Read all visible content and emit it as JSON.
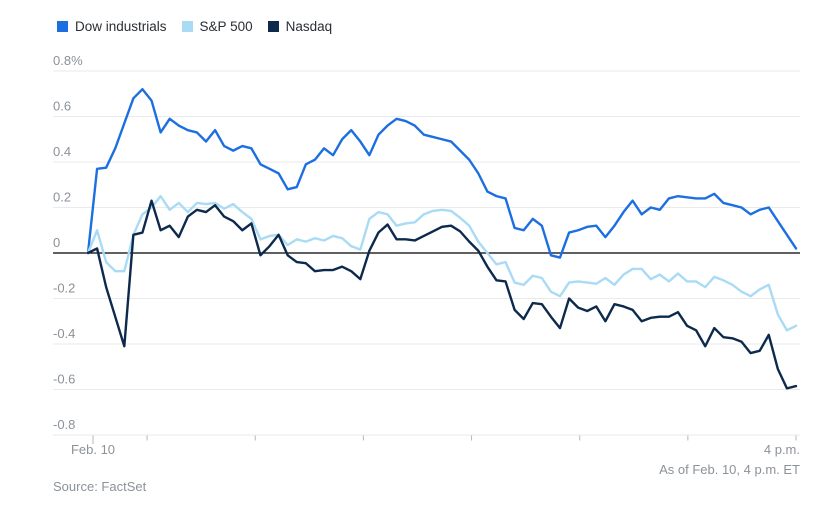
{
  "chart_data": {
    "type": "line",
    "title": "",
    "legend_position": "top-left",
    "grid": true,
    "x_axis": {
      "start_label": "Feb. 10",
      "end_label": "4 p.m."
    },
    "y_axis": {
      "unit": "%",
      "min": -0.8,
      "max": 0.8,
      "tick_labels": [
        "0.8%",
        "0.6",
        "0.4",
        "0.2",
        "0",
        "-0.2",
        "-0.4",
        "-0.6",
        "-0.8"
      ]
    },
    "series": [
      {
        "name": "Dow industrials",
        "color": "#1c6fe0",
        "values": [
          0.0,
          0.37,
          0.375,
          0.46,
          0.57,
          0.68,
          0.72,
          0.67,
          0.53,
          0.59,
          0.56,
          0.54,
          0.53,
          0.49,
          0.54,
          0.47,
          0.45,
          0.47,
          0.46,
          0.39,
          0.37,
          0.35,
          0.28,
          0.29,
          0.39,
          0.41,
          0.46,
          0.43,
          0.5,
          0.54,
          0.49,
          0.43,
          0.52,
          0.56,
          0.59,
          0.58,
          0.56,
          0.52,
          0.51,
          0.5,
          0.49,
          0.45,
          0.41,
          0.35,
          0.27,
          0.25,
          0.24,
          0.11,
          0.1,
          0.15,
          0.12,
          -0.01,
          -0.02,
          0.09,
          0.1,
          0.115,
          0.12,
          0.07,
          0.12,
          0.18,
          0.23,
          0.17,
          0.2,
          0.19,
          0.24,
          0.25,
          0.245,
          0.24,
          0.24,
          0.26,
          0.22,
          0.21,
          0.2,
          0.17,
          0.19,
          0.2,
          0.14,
          0.08,
          0.02
        ]
      },
      {
        "name": "S&P 500",
        "color": "#a9dbf5",
        "values": [
          0.0,
          0.1,
          -0.04,
          -0.08,
          -0.08,
          0.08,
          0.17,
          0.2,
          0.25,
          0.19,
          0.22,
          0.18,
          0.22,
          0.215,
          0.22,
          0.195,
          0.215,
          0.18,
          0.15,
          0.06,
          0.075,
          0.08,
          0.035,
          0.06,
          0.05,
          0.065,
          0.055,
          0.075,
          0.065,
          0.03,
          0.015,
          0.15,
          0.18,
          0.17,
          0.12,
          0.13,
          0.135,
          0.17,
          0.185,
          0.19,
          0.185,
          0.155,
          0.12,
          0.05,
          0.0,
          -0.05,
          -0.04,
          -0.13,
          -0.14,
          -0.1,
          -0.11,
          -0.17,
          -0.19,
          -0.13,
          -0.125,
          -0.13,
          -0.135,
          -0.11,
          -0.14,
          -0.095,
          -0.07,
          -0.07,
          -0.115,
          -0.095,
          -0.125,
          -0.09,
          -0.125,
          -0.125,
          -0.15,
          -0.105,
          -0.12,
          -0.14,
          -0.17,
          -0.19,
          -0.16,
          -0.14,
          -0.27,
          -0.34,
          -0.32
        ]
      },
      {
        "name": "Nasdaq",
        "color": "#0d2a4d",
        "values": [
          0.0,
          0.02,
          -0.15,
          -0.28,
          -0.41,
          0.08,
          0.09,
          0.23,
          0.1,
          0.12,
          0.07,
          0.16,
          0.19,
          0.18,
          0.21,
          0.16,
          0.14,
          0.1,
          0.13,
          -0.01,
          0.03,
          0.08,
          -0.01,
          -0.04,
          -0.045,
          -0.08,
          -0.075,
          -0.075,
          -0.06,
          -0.08,
          -0.115,
          0.01,
          0.09,
          0.125,
          0.06,
          0.06,
          0.055,
          0.075,
          0.095,
          0.115,
          0.12,
          0.095,
          0.05,
          0.01,
          -0.06,
          -0.12,
          -0.125,
          -0.25,
          -0.29,
          -0.22,
          -0.225,
          -0.28,
          -0.33,
          -0.2,
          -0.24,
          -0.255,
          -0.235,
          -0.3,
          -0.225,
          -0.235,
          -0.25,
          -0.3,
          -0.285,
          -0.28,
          -0.28,
          -0.26,
          -0.32,
          -0.34,
          -0.41,
          -0.33,
          -0.37,
          -0.375,
          -0.39,
          -0.44,
          -0.43,
          -0.36,
          -0.51,
          -0.595,
          -0.585
        ]
      }
    ],
    "footnote": "As of Feb. 10, 4 p.m. ET",
    "source": "Source: FactSet"
  },
  "colors": {
    "grid": "#eaeaea",
    "zero_line": "#000000",
    "tick": "#b3b9bf",
    "axis_text": "#8b9299",
    "legend_text": "#2a2e33",
    "background": "#ffffff"
  }
}
